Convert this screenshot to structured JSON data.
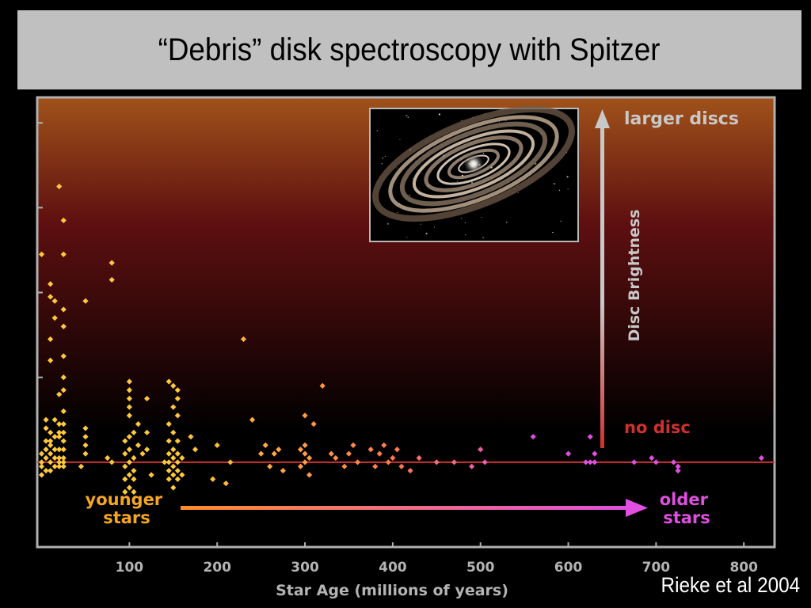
{
  "slide": {
    "title": "“Debris” disk spectroscopy with Spitzer",
    "credit": "Rieke et al 2004"
  },
  "chart_data": {
    "type": "scatter",
    "title": "",
    "xlabel": "Star Age (millions of years)",
    "ylabel": "Disc Brightness",
    "xlim": [
      -5,
      835
    ],
    "ylim": [
      -1,
      4.3
    ],
    "xticks": [
      100,
      200,
      300,
      400,
      500,
      600,
      700,
      800
    ],
    "grid": false,
    "baseline_label": "no disc",
    "top_label": "larger discs",
    "arrow_left_label": [
      "younger",
      "stars"
    ],
    "arrow_right_label": [
      "older",
      "stars"
    ],
    "inset_image": "debris-disk-illustration",
    "colors": {
      "background_top": "#a0521a",
      "background_mid": "#5e0f10",
      "background_bottom": "#000000",
      "young": "#ffc83c",
      "middle": "#ff7a4a",
      "old": "#e04fe0",
      "baseline": "#d03030",
      "brightness_arrow": "#c8c8c8",
      "frame": "#b0b0b0",
      "tick_text": "#b4b4b4"
    },
    "points": [
      [
        20,
        3.25
      ],
      [
        25,
        2.85
      ],
      [
        25,
        2.45
      ],
      [
        0,
        2.45
      ],
      [
        10,
        2.1
      ],
      [
        10,
        1.95
      ],
      [
        15,
        1.9
      ],
      [
        25,
        1.8
      ],
      [
        15,
        1.7
      ],
      [
        25,
        1.6
      ],
      [
        10,
        1.45
      ],
      [
        25,
        1.25
      ],
      [
        10,
        1.2
      ],
      [
        25,
        1.0
      ],
      [
        25,
        0.85
      ],
      [
        20,
        0.8
      ],
      [
        25,
        0.6
      ],
      [
        5,
        0.5
      ],
      [
        15,
        0.5
      ],
      [
        20,
        0.45
      ],
      [
        25,
        0.45
      ],
      [
        5,
        0.4
      ],
      [
        10,
        0.35
      ],
      [
        20,
        0.35
      ],
      [
        25,
        0.35
      ],
      [
        5,
        0.25
      ],
      [
        10,
        0.25
      ],
      [
        15,
        0.3
      ],
      [
        20,
        0.3
      ],
      [
        25,
        0.25
      ],
      [
        5,
        0.15
      ],
      [
        10,
        0.2
      ],
      [
        15,
        0.15
      ],
      [
        20,
        0.15
      ],
      [
        25,
        0.15
      ],
      [
        0,
        0.1
      ],
      [
        5,
        0.05
      ],
      [
        10,
        0.1
      ],
      [
        15,
        0.05
      ],
      [
        20,
        0.05
      ],
      [
        25,
        0.05
      ],
      [
        0,
        0.0
      ],
      [
        10,
        0.0
      ],
      [
        20,
        0.0
      ],
      [
        25,
        0.0
      ],
      [
        0,
        -0.05
      ],
      [
        5,
        -0.1
      ],
      [
        15,
        -0.05
      ],
      [
        0,
        -0.15
      ],
      [
        10,
        -0.1
      ],
      [
        20,
        -0.05
      ],
      [
        25,
        -0.05
      ],
      [
        50,
        1.9
      ],
      [
        80,
        2.35
      ],
      [
        80,
        2.15
      ],
      [
        50,
        0.4
      ],
      [
        50,
        0.3
      ],
      [
        50,
        0.2
      ],
      [
        50,
        0.1
      ],
      [
        45,
        -0.05
      ],
      [
        75,
        0.05
      ],
      [
        80,
        0.0
      ],
      [
        100,
        0.95
      ],
      [
        100,
        0.85
      ],
      [
        100,
        0.75
      ],
      [
        100,
        0.65
      ],
      [
        100,
        0.55
      ],
      [
        105,
        0.35
      ],
      [
        100,
        0.3
      ],
      [
        95,
        0.25
      ],
      [
        110,
        0.2
      ],
      [
        100,
        0.15
      ],
      [
        95,
        0.1
      ],
      [
        105,
        0.05
      ],
      [
        100,
        0.0
      ],
      [
        95,
        -0.05
      ],
      [
        105,
        -0.1
      ],
      [
        100,
        -0.15
      ],
      [
        95,
        -0.2
      ],
      [
        105,
        -0.2
      ],
      [
        100,
        -0.3
      ],
      [
        95,
        -0.35
      ],
      [
        105,
        -0.35
      ],
      [
        110,
        0.45
      ],
      [
        120,
        0.75
      ],
      [
        120,
        0.35
      ],
      [
        120,
        0.15
      ],
      [
        115,
        0.1
      ],
      [
        125,
        -0.15
      ],
      [
        145,
        0.95
      ],
      [
        150,
        0.9
      ],
      [
        155,
        0.85
      ],
      [
        155,
        0.75
      ],
      [
        150,
        0.65
      ],
      [
        155,
        0.55
      ],
      [
        145,
        0.45
      ],
      [
        150,
        0.35
      ],
      [
        145,
        0.25
      ],
      [
        155,
        0.25
      ],
      [
        150,
        0.15
      ],
      [
        145,
        0.1
      ],
      [
        155,
        0.1
      ],
      [
        150,
        0.05
      ],
      [
        145,
        0.0
      ],
      [
        155,
        0.0
      ],
      [
        150,
        -0.05
      ],
      [
        145,
        -0.1
      ],
      [
        155,
        -0.1
      ],
      [
        150,
        -0.15
      ],
      [
        145,
        -0.2
      ],
      [
        155,
        -0.2
      ],
      [
        150,
        -0.3
      ],
      [
        160,
        0.05
      ],
      [
        160,
        -0.15
      ],
      [
        140,
        0.0
      ],
      [
        170,
        0.3
      ],
      [
        175,
        0.15
      ],
      [
        200,
        0.2
      ],
      [
        195,
        -0.2
      ],
      [
        210,
        -0.25
      ],
      [
        215,
        0.0
      ],
      [
        230,
        1.45
      ],
      [
        240,
        0.5
      ],
      [
        250,
        0.1
      ],
      [
        255,
        0.2
      ],
      [
        260,
        -0.05
      ],
      [
        265,
        0.1
      ],
      [
        270,
        0.15
      ],
      [
        275,
        -0.1
      ],
      [
        300,
        0.55
      ],
      [
        310,
        0.45
      ],
      [
        300,
        0.2
      ],
      [
        295,
        0.15
      ],
      [
        300,
        0.1
      ],
      [
        305,
        0.05
      ],
      [
        300,
        0.0
      ],
      [
        295,
        -0.05
      ],
      [
        305,
        -0.15
      ],
      [
        320,
        0.9
      ],
      [
        330,
        0.1
      ],
      [
        335,
        0.05
      ],
      [
        345,
        -0.05
      ],
      [
        350,
        0.1
      ],
      [
        355,
        0.2
      ],
      [
        360,
        0.0
      ],
      [
        375,
        0.15
      ],
      [
        385,
        0.1
      ],
      [
        390,
        0.2
      ],
      [
        400,
        0.05
      ],
      [
        405,
        0.15
      ],
      [
        410,
        -0.05
      ],
      [
        420,
        -0.1
      ],
      [
        395,
        0.0
      ],
      [
        430,
        0.05
      ],
      [
        450,
        0.0
      ],
      [
        470,
        0.0
      ],
      [
        490,
        -0.05
      ],
      [
        500,
        0.15
      ],
      [
        505,
        0.0
      ],
      [
        380,
        -0.05
      ],
      [
        560,
        0.3
      ],
      [
        600,
        0.1
      ],
      [
        620,
        0.0
      ],
      [
        625,
        0.0
      ],
      [
        630,
        0.0
      ],
      [
        625,
        0.3
      ],
      [
        630,
        0.1
      ],
      [
        675,
        0.0
      ],
      [
        695,
        0.05
      ],
      [
        700,
        0.0
      ],
      [
        720,
        0.0
      ],
      [
        725,
        -0.05
      ],
      [
        725,
        -0.1
      ],
      [
        820,
        0.05
      ]
    ]
  }
}
